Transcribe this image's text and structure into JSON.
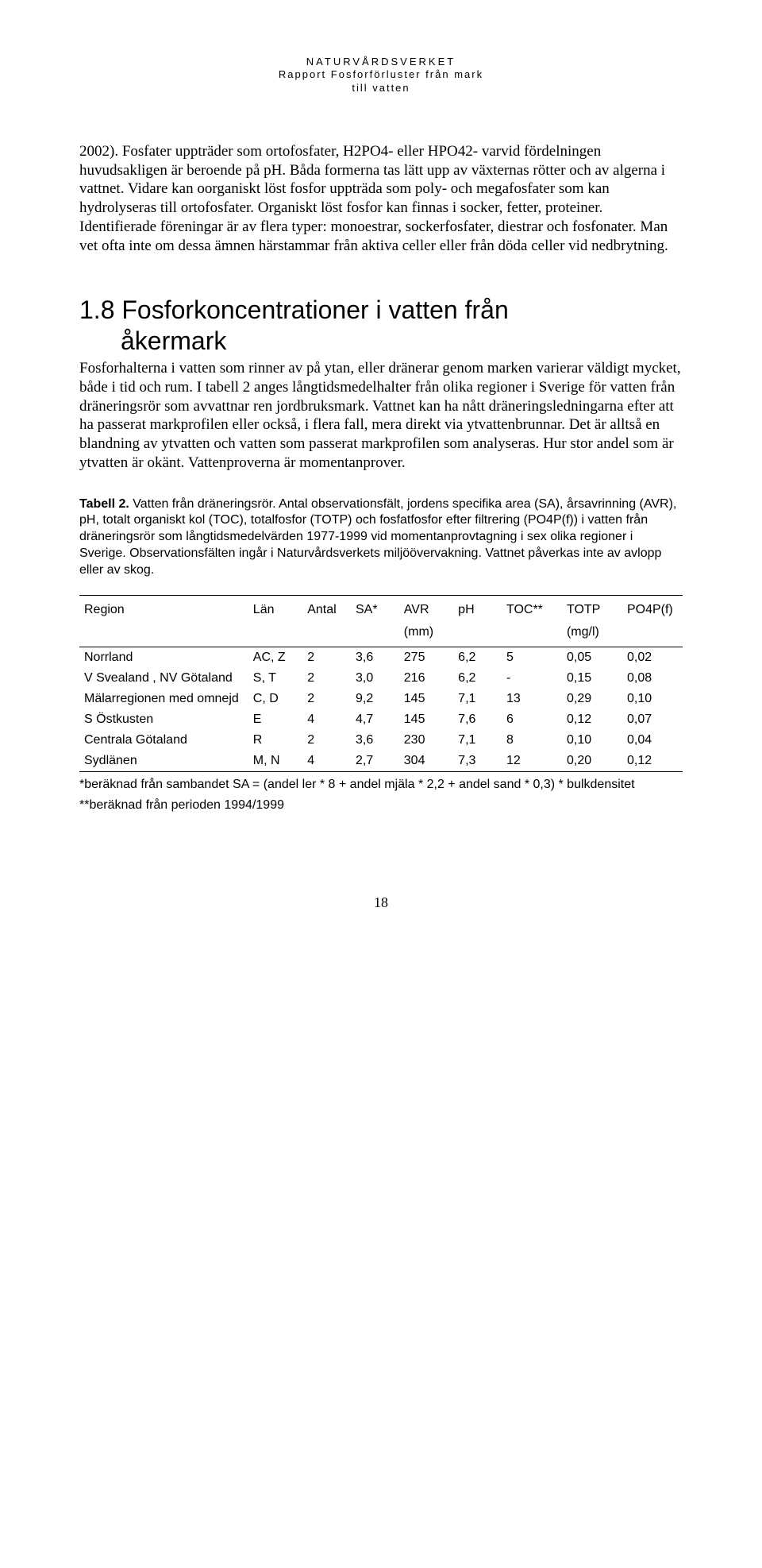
{
  "header": {
    "line1": "NATURVÅRDSVERKET",
    "line2": "Rapport Fosforförluster från mark",
    "line3": "till vatten"
  },
  "para1": "2002). Fosfater uppträder som ortofosfater, H2PO4- eller HPO42- varvid fördelningen huvudsakligen är beroende på pH. Båda formerna tas lätt upp av växternas rötter och av algerna i vattnet. Vidare kan oorganiskt löst fosfor uppträda som poly- och megafosfater som kan hydrolyseras till ortofosfater. Organiskt löst fosfor kan finnas i socker, fetter, proteiner. Identifierade föreningar är av flera typer: monoestrar, sockerfosfater, diestrar och fosfonater. Man vet ofta inte om dessa ämnen härstammar från aktiva celler eller från döda celler vid nedbrytning.",
  "section": {
    "number": "1.8",
    "title_line1": "Fosforkoncentrationer i vatten från",
    "title_line2": "åkermark"
  },
  "para2": "Fosforhalterna i vatten som rinner av på ytan, eller dränerar genom marken varierar väldigt mycket, både i tid och rum. I tabell 2 anges långtidsmedelhalter från olika regioner i Sverige för vatten från dräneringsrör som avvattnar ren jordbruksmark. Vattnet kan ha nått dräneringsledningarna efter att ha passerat markprofilen eller också, i flera fall, mera direkt via ytvattenbrunnar. Det är alltså en blandning av ytvatten och vatten som passerat markprofilen som analyseras. Hur stor andel som är ytvatten är okänt. Vattenproverna är momentanprover.",
  "table_caption": {
    "bold": "Tabell 2.",
    "rest": " Vatten från dräneringsrör. Antal observationsfält, jordens specifika area (SA), årsavrinning (AVR), pH, totalt organiskt kol (TOC), totalfosfor (TOTP) och fosfatfosfor efter filtrering (PO4P(f)) i vatten från dräneringsrör som långtidsmedelvärden 1977-1999 vid momentanprovtagning i sex olika regioner i Sverige. Observationsfälten ingår i Naturvårdsverkets miljöövervakning. Vattnet påverkas inte av avlopp eller av skog."
  },
  "table": {
    "columns_row1": [
      "Region",
      "Län",
      "Antal",
      "SA*",
      "AVR",
      "pH",
      "TOC**",
      "TOTP",
      "PO4P(f)"
    ],
    "columns_row2": [
      "",
      "",
      "",
      "",
      "(mm)",
      "",
      "",
      "(mg/l)",
      ""
    ],
    "rows": [
      [
        "Norrland",
        "AC, Z",
        "2",
        "3,6",
        "275",
        "6,2",
        "5",
        "0,05",
        "0,02"
      ],
      [
        "V Svealand , NV Götaland",
        "S, T",
        "2",
        "3,0",
        "216",
        "6,2",
        "-",
        "0,15",
        "0,08"
      ],
      [
        "Mälarregionen med omnejd",
        "C, D",
        "2",
        "9,2",
        "145",
        "7,1",
        "13",
        "0,29",
        "0,10"
      ],
      [
        "S Östkusten",
        "E",
        "4",
        "4,7",
        "145",
        "7,6",
        "6",
        "0,12",
        "0,07"
      ],
      [
        "Centrala Götaland",
        "R",
        "2",
        "3,6",
        "230",
        "7,1",
        "8",
        "0,10",
        "0,04"
      ],
      [
        "Sydlänen",
        "M, N",
        "4",
        "2,7",
        "304",
        "7,3",
        "12",
        "0,20",
        "0,12"
      ]
    ],
    "col_widths": [
      "28%",
      "9%",
      "8%",
      "8%",
      "9%",
      "8%",
      "10%",
      "10%",
      "10%"
    ]
  },
  "footnote1": "*beräknad från sambandet SA = (andel ler * 8 + andel mjäla * 2,2 + andel sand * 0,3) * bulkdensitet",
  "footnote2": "**beräknad från perioden 1994/1999",
  "page_number": "18",
  "colors": {
    "text": "#000000",
    "background": "#ffffff",
    "border": "#000000"
  },
  "typography": {
    "body_font": "Times New Roman",
    "sans_font": "Arial",
    "body_fontsize": 19,
    "heading_fontsize": 32,
    "caption_fontsize": 16,
    "header_fontsize": 13
  }
}
